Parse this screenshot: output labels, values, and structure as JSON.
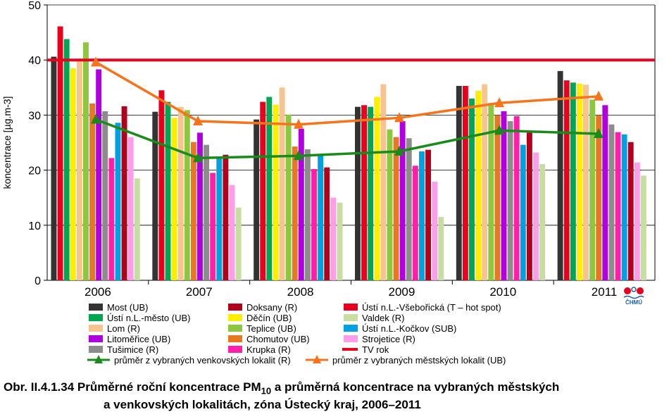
{
  "chart_data": {
    "type": "bar",
    "ylabel": "koncentrace [µg.m-3]",
    "ylim": [
      0,
      50
    ],
    "yticks": [
      0,
      10,
      20,
      30,
      40,
      50
    ],
    "grid": true,
    "categories": [
      "2006",
      "2007",
      "2008",
      "2009",
      "2010",
      "2011"
    ],
    "series": [
      {
        "name": "Most (UB)",
        "color": "#333333",
        "values": [
          40.6,
          30.6,
          29.2,
          31.5,
          35.3,
          38.0
        ]
      },
      {
        "name": "Ústí n.L.-Všebořická (T – hot spot)",
        "color": "#e8001c",
        "values": [
          46.1,
          34.5,
          32.4,
          31.8,
          35.3,
          36.3
        ]
      },
      {
        "name": "Ústí n.L.-město (UB)",
        "color": "#00a651",
        "values": [
          43.8,
          32.4,
          33.3,
          31.5,
          33.0,
          35.9
        ]
      },
      {
        "name": "Děčín (UB)",
        "color": "#ffee00",
        "values": [
          38.5,
          29.5,
          31.9,
          33.3,
          34.4,
          35.7
        ]
      },
      {
        "name": "Lom (R)",
        "color": "#f7c38f",
        "values": [
          40.0,
          31.5,
          35.0,
          35.6,
          35.6,
          35.5
        ]
      },
      {
        "name": "Teplice (UB)",
        "color": "#8dc63f",
        "values": [
          43.2,
          30.9,
          30.1,
          27.4,
          32.2,
          32.8
        ]
      },
      {
        "name": "Chomutov (UB)",
        "color": "#e87722",
        "values": [
          32.1,
          25.1,
          24.3,
          26.0,
          30.0,
          30.0
        ]
      },
      {
        "name": "Litoměřice (UB)",
        "color": "#b000e0",
        "values": [
          38.3,
          26.8,
          27.5,
          28.9,
          30.7,
          31.8
        ]
      },
      {
        "name": "Tušimice (R)",
        "color": "#8c8c8c",
        "values": [
          30.7,
          24.6,
          23.8,
          25.8,
          28.9,
          28.3
        ]
      },
      {
        "name": "Krupka (R)",
        "color": "#ff1fa8",
        "values": [
          22.2,
          19.5,
          20.2,
          20.8,
          29.8,
          26.9
        ]
      },
      {
        "name": "Ústí n.L.-Kočkov (SUB)",
        "color": "#00a0e3",
        "values": [
          28.6,
          22.2,
          22.9,
          23.4,
          24.6,
          26.5
        ]
      },
      {
        "name": "Doksany (R)",
        "color": "#b3001b",
        "values": [
          31.6,
          22.8,
          20.5,
          23.7,
          26.8,
          25.1
        ]
      },
      {
        "name": "Strojetice (R)",
        "color": "#ff9ee8",
        "values": [
          26.0,
          17.3,
          15.0,
          17.9,
          23.2,
          21.4
        ]
      },
      {
        "name": "Valdek (R)",
        "color": "#c8dea0",
        "values": [
          18.5,
          13.2,
          14.1,
          11.5,
          21.1,
          19.0
        ]
      }
    ],
    "lines": [
      {
        "name": "průměr z vybraných venkovských lokalit (R)",
        "color": "#1a8a1a",
        "marker": "triangle",
        "values": [
          29.2,
          22.2,
          22.6,
          23.4,
          27.2,
          26.6
        ]
      },
      {
        "name": "průměr z vybraných městských lokalit  (UB)",
        "color": "#f7741c",
        "marker": "triangle",
        "values": [
          39.6,
          28.9,
          28.3,
          29.5,
          32.2,
          33.4
        ]
      }
    ],
    "reference_line": {
      "name": "TV rok",
      "value": 40,
      "color": "#e8001c"
    },
    "legend_layout": [
      [
        "Most (UB)",
        "Doksany (R)",
        "Ústí n.L.-Všebořická (T – hot spot)"
      ],
      [
        "Ústí n.L.-město (UB)",
        "Děčín (UB)",
        "Valdek (R)"
      ],
      [
        "Lom (R)",
        "Teplice (UB)",
        "Ústí n.L.-Kočkov (SUB)"
      ],
      [
        "Litoměřice (UB)",
        "Chomutov (UB)",
        "Strojetice (R)"
      ],
      [
        "Tušimice (R)",
        "Krupka (R)",
        "TV rok"
      ]
    ],
    "legend_placement": "bottom"
  },
  "caption": {
    "prefix": "Obr. II.4.1.34  Průměrné roční koncentrace PM",
    "sub": "10",
    "suffix": " a průměrná koncentrace na vybraných městských",
    "line2": "a venkovských lokalitách, zóna Ústecký kraj, 2006–2011"
  },
  "logo": {
    "text": "ČHMÚ",
    "icon": "chmu-logo-icon"
  }
}
